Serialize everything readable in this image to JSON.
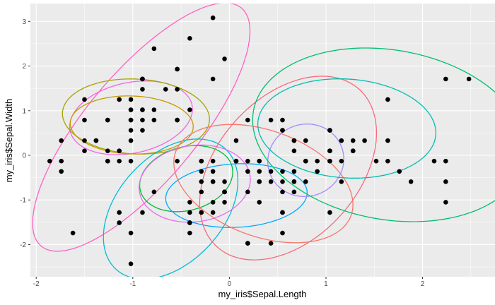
{
  "chart_data": {
    "type": "scatter",
    "title": "",
    "xlabel": "my_iris$Sepal.Length",
    "ylabel": "my_iris$Sepal.Width",
    "xlim": [
      -2.06,
      2.75
    ],
    "ylim": [
      -2.72,
      3.4
    ],
    "x_ticks": [
      -2,
      -1,
      0,
      1,
      2
    ],
    "y_ticks": [
      -2,
      -1,
      0,
      1,
      2,
      3
    ],
    "grid": true,
    "background": "#EBEBEB",
    "point_color": "#000000",
    "points": [
      [
        -0.9,
        1.02
      ],
      [
        -1.14,
        -0.13
      ],
      [
        -1.38,
        0.33
      ],
      [
        -1.5,
        0.1
      ],
      [
        -1.02,
        1.25
      ],
      [
        -0.54,
        1.93
      ],
      [
        -1.5,
        0.79
      ],
      [
        -1.02,
        0.79
      ],
      [
        -1.74,
        -0.36
      ],
      [
        -1.14,
        0.1
      ],
      [
        -0.54,
        1.48
      ],
      [
        -1.26,
        0.79
      ],
      [
        -1.26,
        -0.13
      ],
      [
        -1.86,
        -0.13
      ],
      [
        -0.05,
        2.16
      ],
      [
        -0.17,
        3.08
      ],
      [
        -0.54,
        1.93
      ],
      [
        -0.9,
        1.02
      ],
      [
        -0.17,
        1.71
      ],
      [
        -0.9,
        1.71
      ],
      [
        -0.54,
        0.79
      ],
      [
        -0.9,
        1.48
      ],
      [
        -1.5,
        1.25
      ],
      [
        -0.9,
        0.56
      ],
      [
        -1.26,
        0.79
      ],
      [
        -1.02,
        -0.13
      ],
      [
        -1.02,
        0.79
      ],
      [
        -0.78,
        1.02
      ],
      [
        -0.78,
        0.79
      ],
      [
        -1.38,
        0.33
      ],
      [
        -1.26,
        0.1
      ],
      [
        -0.54,
        0.79
      ],
      [
        -0.78,
        2.39
      ],
      [
        -0.41,
        2.62
      ],
      [
        -1.14,
        0.1
      ],
      [
        -1.02,
        0.33
      ],
      [
        -0.41,
        1.02
      ],
      [
        -1.14,
        1.25
      ],
      [
        -1.74,
        -0.13
      ],
      [
        -0.9,
        0.79
      ],
      [
        -1.02,
        1.02
      ],
      [
        -1.62,
        -1.74
      ],
      [
        -1.74,
        0.33
      ],
      [
        -1.02,
        1.02
      ],
      [
        -0.9,
        1.71
      ],
      [
        -1.26,
        -0.13
      ],
      [
        -0.9,
        1.71
      ],
      [
        -1.5,
        0.33
      ],
      [
        -0.66,
        1.48
      ],
      [
        -1.02,
        0.56
      ],
      [
        1.4,
        0.33
      ],
      [
        0.67,
        0.33
      ],
      [
        1.28,
        0.1
      ],
      [
        -0.41,
        -1.74
      ],
      [
        0.79,
        -0.59
      ],
      [
        -0.17,
        -0.59
      ],
      [
        0.55,
        0.56
      ],
      [
        -1.14,
        -1.51
      ],
      [
        0.91,
        -0.36
      ],
      [
        -0.78,
        -0.82
      ],
      [
        -1.02,
        -2.43
      ],
      [
        0.07,
        -0.13
      ],
      [
        0.19,
        -1.97
      ],
      [
        0.31,
        -0.36
      ],
      [
        -0.29,
        -0.36
      ],
      [
        1.04,
        0.1
      ],
      [
        -0.29,
        -0.13
      ],
      [
        -0.05,
        -0.82
      ],
      [
        0.43,
        -1.97
      ],
      [
        -0.29,
        -1.28
      ],
      [
        0.07,
        0.33
      ],
      [
        0.31,
        -0.59
      ],
      [
        0.55,
        -1.28
      ],
      [
        0.31,
        -0.59
      ],
      [
        0.67,
        -0.36
      ],
      [
        0.91,
        -0.13
      ],
      [
        1.16,
        -0.59
      ],
      [
        1.04,
        -0.13
      ],
      [
        0.19,
        -0.36
      ],
      [
        -0.17,
        -1.05
      ],
      [
        -0.41,
        -1.51
      ],
      [
        -0.41,
        -1.51
      ],
      [
        -0.05,
        -0.82
      ],
      [
        0.19,
        -0.82
      ],
      [
        -0.54,
        -0.13
      ],
      [
        0.19,
        0.79
      ],
      [
        1.04,
        0.1
      ],
      [
        0.55,
        -1.74
      ],
      [
        -0.29,
        -0.13
      ],
      [
        -0.41,
        -1.28
      ],
      [
        -0.41,
        -1.05
      ],
      [
        0.31,
        -0.13
      ],
      [
        -0.05,
        -1.05
      ],
      [
        -1.02,
        -1.74
      ],
      [
        -0.29,
        -0.82
      ],
      [
        -0.17,
        -0.13
      ],
      [
        -0.17,
        -0.36
      ],
      [
        0.43,
        -0.36
      ],
      [
        -0.9,
        -1.28
      ],
      [
        -0.17,
        -0.59
      ],
      [
        0.55,
        0.56
      ],
      [
        -0.05,
        -0.82
      ],
      [
        1.52,
        -0.13
      ],
      [
        0.55,
        -0.36
      ],
      [
        0.79,
        -0.13
      ],
      [
        2.12,
        -0.13
      ],
      [
        -1.14,
        -1.28
      ],
      [
        1.76,
        -0.36
      ],
      [
        1.04,
        -1.28
      ],
      [
        1.64,
        1.25
      ],
      [
        0.79,
        0.33
      ],
      [
        0.67,
        -0.82
      ],
      [
        1.16,
        -0.13
      ],
      [
        -0.17,
        -1.28
      ],
      [
        -0.05,
        -0.59
      ],
      [
        0.67,
        0.33
      ],
      [
        0.79,
        -0.13
      ],
      [
        2.24,
        1.71
      ],
      [
        2.24,
        -1.05
      ],
      [
        0.19,
        -1.97
      ],
      [
        1.28,
        0.33
      ],
      [
        -0.29,
        -0.59
      ],
      [
        2.24,
        -0.59
      ],
      [
        0.55,
        -0.82
      ],
      [
        1.04,
        0.56
      ],
      [
        1.64,
        0.33
      ],
      [
        0.43,
        -0.59
      ],
      [
        0.31,
        -0.13
      ],
      [
        0.67,
        -0.59
      ],
      [
        1.64,
        -0.13
      ],
      [
        1.88,
        -0.59
      ],
      [
        2.48,
        1.71
      ],
      [
        0.67,
        -0.59
      ],
      [
        0.55,
        -0.59
      ],
      [
        0.31,
        -1.05
      ],
      [
        2.24,
        -0.13
      ],
      [
        0.55,
        0.79
      ],
      [
        0.67,
        0.1
      ],
      [
        0.19,
        -0.13
      ],
      [
        1.28,
        0.1
      ],
      [
        1.04,
        0.1
      ],
      [
        1.28,
        0.1
      ],
      [
        -0.05,
        -0.82
      ],
      [
        1.16,
        0.33
      ],
      [
        1.04,
        0.56
      ],
      [
        1.04,
        -0.13
      ],
      [
        0.55,
        -1.28
      ],
      [
        0.79,
        -0.13
      ],
      [
        0.43,
        0.79
      ],
      [
        0.07,
        -0.13
      ]
    ],
    "ellipses": [
      {
        "color": "#FF61C3",
        "center": [
          -0.912,
          0.633
        ],
        "u": [
          1.037,
          2.666
        ],
        "v": [
          0.437,
          -0.793
        ]
      },
      {
        "color": "#F564E3",
        "center": [
          -1.018,
          0.839
        ],
        "u": [
          0.631,
          0.29
        ],
        "v": [
          0.076,
          -0.774
        ]
      },
      {
        "color": "#A3A500",
        "center": [
          -0.967,
          0.87
        ],
        "u": [
          0.761,
          -0.086
        ],
        "v": [
          -0.02,
          -0.837
        ]
      },
      {
        "color": "#C49A00",
        "center": [
          -1.011,
          0.68
        ],
        "u": [
          0.637,
          -0.048
        ],
        "v": [
          -0.01,
          -0.649
        ]
      },
      {
        "color": "#00BCD8",
        "center": [
          -0.608,
          -1.203
        ],
        "u": [
          0.564,
          1.353
        ],
        "v": [
          0.408,
          -0.794
        ]
      },
      {
        "color": "#00BA38",
        "center": [
          -0.447,
          -0.522
        ],
        "u": [
          0.474,
          0.274
        ],
        "v": [
          0.085,
          -0.688
        ]
      },
      {
        "color": "#E76BF3",
        "center": [
          -0.359,
          -0.633
        ],
        "u": [
          0.573,
          0.174
        ],
        "v": [
          0.055,
          -0.847
        ]
      },
      {
        "color": "#00A9FF",
        "center": [
          0.073,
          -0.902
        ],
        "u": [
          0.732,
          0.082
        ],
        "v": [
          0.018,
          -0.71
        ]
      },
      {
        "color": "#F8766D",
        "center": [
          0.352,
          -0.633
        ],
        "u": [
          0.908,
          -0.714
        ],
        "v": [
          -0.188,
          -1.116
        ]
      },
      {
        "color": "#F8697A",
        "center": [
          0.608,
          -0.285
        ],
        "u": [
          0.736,
          1.764
        ],
        "v": [
          0.544,
          -1.059
        ]
      },
      {
        "color": "#A58AFF",
        "center": [
          0.791,
          -0.111
        ],
        "u": [
          0.372,
          0.292
        ],
        "v": [
          0.128,
          -0.758
        ]
      },
      {
        "color": "#00BFAF",
        "center": [
          1.216,
          0.601
        ],
        "u": [
          0.921,
          -0.139
        ],
        "v": [
          -0.036,
          -1.104
        ]
      },
      {
        "color": "#00BE70",
        "center": [
          1.656,
          0.459
        ],
        "u": [
          1.407,
          -0.536
        ],
        "v": [
          -0.152,
          -1.87
        ]
      }
    ]
  }
}
